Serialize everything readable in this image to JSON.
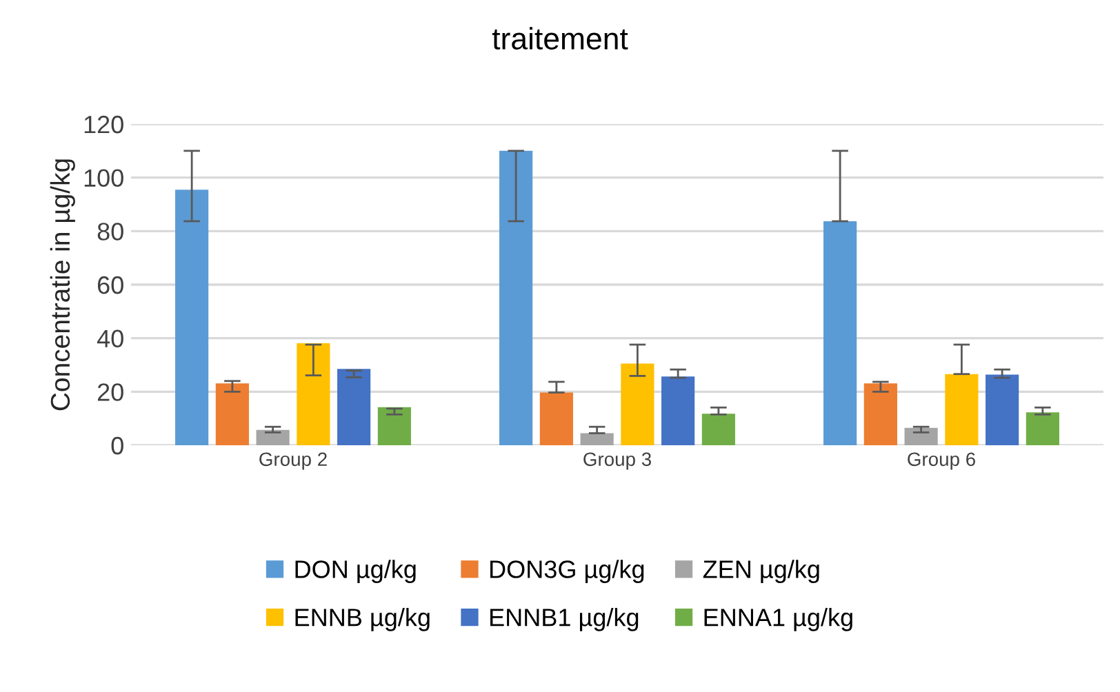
{
  "chart_data": {
    "type": "bar",
    "title": "traitement",
    "ylabel": "Concentratie in µg/kg",
    "categories": [
      "Group 2",
      "Group 3",
      "Group 6"
    ],
    "series": [
      {
        "name": "DON µg/kg",
        "color": "#5b9bd5",
        "values": [
          95.5,
          110,
          83.7
        ],
        "errors": [
          [
            83.7,
            110
          ],
          [
            83.7,
            110
          ],
          [
            83.7,
            110
          ]
        ]
      },
      {
        "name": "DON3G µg/kg",
        "color": "#ed7d31",
        "values": [
          23.1,
          19.7,
          23.1
        ],
        "errors": [
          [
            20,
            24
          ],
          [
            19.7,
            23.7
          ],
          [
            20,
            23.7
          ]
        ]
      },
      {
        "name": "ZEN µg/kg",
        "color": "#a5a5a5",
        "values": [
          5.7,
          4.5,
          6.5
        ],
        "errors": [
          [
            4.8,
            6.9
          ],
          [
            4.5,
            6.9
          ],
          [
            4.8,
            6.9
          ]
        ]
      },
      {
        "name": "ENNB µg/kg",
        "color": "#ffc000",
        "values": [
          38.1,
          30.5,
          26.6
        ],
        "errors": [
          [
            26.1,
            37.6
          ],
          [
            25.9,
            37.6
          ],
          [
            26.6,
            37.6
          ]
        ]
      },
      {
        "name": "ENNB1 µg/kg",
        "color": "#4472c4",
        "values": [
          28.5,
          25.7,
          26.4
        ],
        "errors": [
          [
            25.4,
            27.9
          ],
          [
            25.2,
            28.3
          ],
          [
            25.2,
            28.3
          ]
        ]
      },
      {
        "name": "ENNA1 µg/kg",
        "color": "#70ad47",
        "values": [
          14.2,
          11.8,
          12.3
        ],
        "errors": [
          [
            11.5,
            13.7
          ],
          [
            11.5,
            14.1
          ],
          [
            11.5,
            14.1
          ]
        ]
      }
    ],
    "ylim": [
      0,
      120
    ],
    "yticks": [
      0,
      20,
      40,
      60,
      80,
      100,
      120
    ],
    "grid": "y",
    "legend": "bottom"
  }
}
